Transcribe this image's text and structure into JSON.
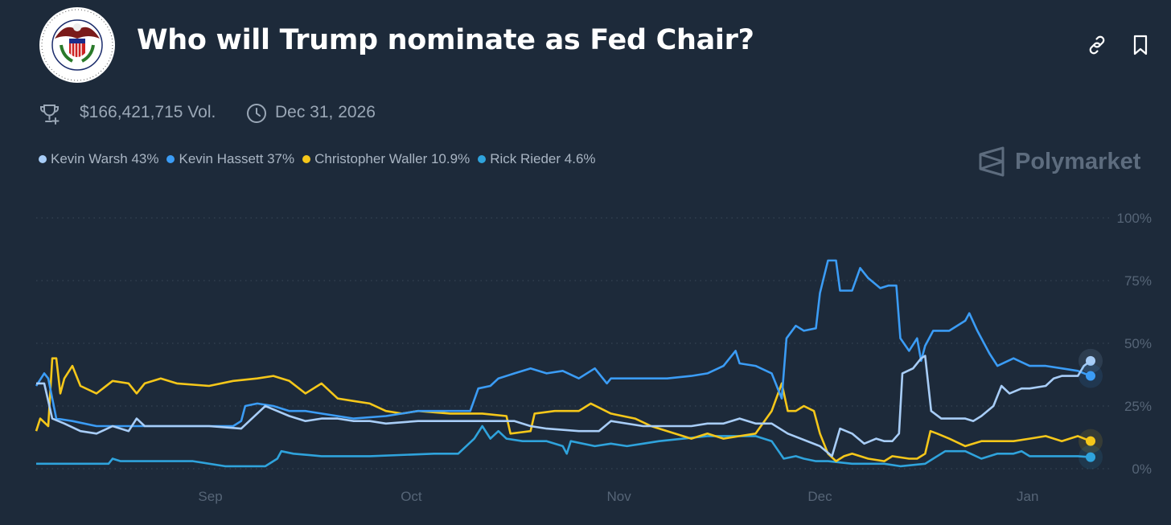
{
  "header": {
    "logo_text": "BOARD OF GOVERNORS OF THE FEDERAL RESERVE SYSTEM",
    "title": "Who will Trump nominate as Fed Chair?",
    "volume": "$166,421,715 Vol.",
    "end_date": "Dec 31, 2026",
    "icons": [
      "trophy-icon",
      "clock-icon",
      "link-icon",
      "bookmark-icon"
    ]
  },
  "brand": "Polymarket",
  "legend": [
    {
      "label": "Kevin Warsh 43%",
      "color": "#a8cdf7"
    },
    {
      "label": "Kevin Hassett 37%",
      "color": "#3b9cf5"
    },
    {
      "label": "Christopher Waller 10.9%",
      "color": "#f5c71a"
    },
    {
      "label": "Rick Rieder 4.6%",
      "color": "#2fa3dc"
    }
  ],
  "chart_data": {
    "type": "line",
    "title": "Who will Trump nominate as Fed Chair?",
    "x_unit": "days since Aug 6",
    "xlim": [
      0,
      157.4
    ],
    "ylim": [
      0,
      100
    ],
    "x_ticks": [
      {
        "label": "Sep",
        "x": 26
      },
      {
        "label": "Oct",
        "x": 56
      },
      {
        "label": "Nov",
        "x": 87
      },
      {
        "label": "Dec",
        "x": 117
      },
      {
        "label": "Jan",
        "x": 148
      }
    ],
    "y_ticks": [
      {
        "label": "100%",
        "y": 100
      },
      {
        "label": "75%",
        "y": 75
      },
      {
        "label": "50%",
        "y": 50
      },
      {
        "label": "25%",
        "y": 25
      },
      {
        "label": "0%",
        "y": 0
      }
    ],
    "grid": true,
    "series": [
      {
        "name": "Kevin Warsh",
        "color": "#a8cdf7",
        "points": [
          [
            0,
            34
          ],
          [
            1.2,
            34
          ],
          [
            2.4,
            20
          ],
          [
            4.2,
            18
          ],
          [
            6.6,
            15
          ],
          [
            9,
            14
          ],
          [
            11.4,
            17
          ],
          [
            13.8,
            15
          ],
          [
            15,
            20
          ],
          [
            16.2,
            17
          ],
          [
            21,
            17
          ],
          [
            25.8,
            17
          ],
          [
            30.6,
            16
          ],
          [
            34.2,
            25
          ],
          [
            37.8,
            21
          ],
          [
            40.2,
            19
          ],
          [
            42.6,
            20
          ],
          [
            45,
            20
          ],
          [
            47.4,
            19
          ],
          [
            49.8,
            19
          ],
          [
            52.2,
            18
          ],
          [
            57,
            19
          ],
          [
            61.8,
            19
          ],
          [
            64.2,
            19
          ],
          [
            66.6,
            19
          ],
          [
            71.4,
            19
          ],
          [
            73.8,
            17
          ],
          [
            76.2,
            16
          ],
          [
            81,
            15
          ],
          [
            84,
            15
          ],
          [
            85.8,
            19
          ],
          [
            90.6,
            17
          ],
          [
            93,
            17
          ],
          [
            95.4,
            17
          ],
          [
            97.8,
            17
          ],
          [
            100.2,
            18
          ],
          [
            102.6,
            18
          ],
          [
            105,
            20
          ],
          [
            107.4,
            18
          ],
          [
            109.8,
            18
          ],
          [
            112.2,
            14
          ],
          [
            117,
            9
          ],
          [
            118.8,
            5
          ],
          [
            120,
            16
          ],
          [
            121.8,
            14
          ],
          [
            123.6,
            10
          ],
          [
            125.4,
            12
          ],
          [
            126.6,
            11
          ],
          [
            127.8,
            11
          ],
          [
            128.8,
            14
          ],
          [
            129.3,
            38
          ],
          [
            130.9,
            40
          ],
          [
            132.1,
            44
          ],
          [
            132.7,
            45
          ],
          [
            133.6,
            23
          ],
          [
            135.1,
            20
          ],
          [
            136.3,
            20
          ],
          [
            138.7,
            20
          ],
          [
            139.9,
            19
          ],
          [
            141.1,
            21
          ],
          [
            142.9,
            25
          ],
          [
            144.1,
            33
          ],
          [
            145.3,
            30
          ],
          [
            147.1,
            32
          ],
          [
            148.3,
            32
          ],
          [
            150.7,
            33
          ],
          [
            151.9,
            36
          ],
          [
            153.1,
            37
          ],
          [
            155.5,
            37
          ],
          [
            156.4,
            41
          ],
          [
            157.4,
            43
          ]
        ]
      },
      {
        "name": "Kevin Hassett",
        "color": "#3b9cf5",
        "points": [
          [
            0,
            33
          ],
          [
            1.2,
            38
          ],
          [
            1.8,
            36
          ],
          [
            3,
            20
          ],
          [
            5.4,
            19
          ],
          [
            9,
            17
          ],
          [
            16.2,
            17
          ],
          [
            24.6,
            17
          ],
          [
            29.4,
            17
          ],
          [
            30.6,
            19
          ],
          [
            31.2,
            25
          ],
          [
            33,
            26
          ],
          [
            35.4,
            25
          ],
          [
            37.8,
            23
          ],
          [
            40.2,
            23
          ],
          [
            42.6,
            22
          ],
          [
            47.4,
            20
          ],
          [
            52.2,
            21
          ],
          [
            54.6,
            22
          ],
          [
            57,
            23
          ],
          [
            61.8,
            23
          ],
          [
            64.8,
            23
          ],
          [
            66,
            32
          ],
          [
            67.8,
            33
          ],
          [
            69,
            36
          ],
          [
            71.4,
            38
          ],
          [
            73.8,
            40
          ],
          [
            76.2,
            38
          ],
          [
            78.6,
            39
          ],
          [
            81,
            36
          ],
          [
            83.4,
            40
          ],
          [
            85.2,
            34
          ],
          [
            85.8,
            36
          ],
          [
            90.6,
            36
          ],
          [
            94.2,
            36
          ],
          [
            97.8,
            37
          ],
          [
            100.2,
            38
          ],
          [
            102.6,
            41
          ],
          [
            104.4,
            47
          ],
          [
            105,
            42
          ],
          [
            107.4,
            41
          ],
          [
            109.8,
            38
          ],
          [
            111.3,
            28
          ],
          [
            112,
            52
          ],
          [
            113.4,
            57
          ],
          [
            114.6,
            55
          ],
          [
            116.4,
            56
          ],
          [
            117,
            70
          ],
          [
            118.2,
            83
          ],
          [
            119.4,
            83
          ],
          [
            120,
            71
          ],
          [
            121.8,
            71
          ],
          [
            123,
            80
          ],
          [
            124.2,
            76
          ],
          [
            126,
            72
          ],
          [
            127.2,
            73
          ],
          [
            128.4,
            73
          ],
          [
            129,
            52
          ],
          [
            130.3,
            47
          ],
          [
            131.5,
            52
          ],
          [
            132.1,
            43
          ],
          [
            132.7,
            49
          ],
          [
            133.9,
            55
          ],
          [
            135.1,
            55
          ],
          [
            136.3,
            55
          ],
          [
            138.7,
            59
          ],
          [
            139.3,
            62
          ],
          [
            140.5,
            55
          ],
          [
            142.3,
            46
          ],
          [
            143.5,
            41
          ],
          [
            145.9,
            44
          ],
          [
            148.3,
            41
          ],
          [
            150.7,
            41
          ],
          [
            153.1,
            40
          ],
          [
            155.5,
            39
          ],
          [
            157.4,
            37
          ]
        ]
      },
      {
        "name": "Christopher Waller",
        "color": "#f5c71a",
        "points": [
          [
            0,
            15
          ],
          [
            0.6,
            20
          ],
          [
            1.8,
            17
          ],
          [
            2.4,
            44
          ],
          [
            3,
            44
          ],
          [
            3.6,
            30
          ],
          [
            4.2,
            36
          ],
          [
            5.4,
            41
          ],
          [
            6.6,
            33
          ],
          [
            9,
            30
          ],
          [
            11.4,
            35
          ],
          [
            13.8,
            34
          ],
          [
            15,
            30
          ],
          [
            16.2,
            34
          ],
          [
            18.6,
            36
          ],
          [
            21,
            34
          ],
          [
            25.8,
            33
          ],
          [
            29.4,
            35
          ],
          [
            33,
            36
          ],
          [
            35.4,
            37
          ],
          [
            37.8,
            35
          ],
          [
            40.2,
            30
          ],
          [
            42.6,
            34
          ],
          [
            45,
            28
          ],
          [
            47.4,
            27
          ],
          [
            49.8,
            26
          ],
          [
            52.2,
            23
          ],
          [
            54.6,
            22
          ],
          [
            57,
            23
          ],
          [
            61.8,
            22
          ],
          [
            66.6,
            22
          ],
          [
            70.2,
            21
          ],
          [
            70.8,
            14
          ],
          [
            73.8,
            15
          ],
          [
            74.4,
            22
          ],
          [
            77.4,
            23
          ],
          [
            81,
            23
          ],
          [
            82.8,
            26
          ],
          [
            85.8,
            22
          ],
          [
            89.4,
            20
          ],
          [
            91.8,
            17
          ],
          [
            94.2,
            15
          ],
          [
            97.8,
            12
          ],
          [
            100.2,
            14
          ],
          [
            102.6,
            12
          ],
          [
            105,
            13
          ],
          [
            107.4,
            14
          ],
          [
            109.8,
            23
          ],
          [
            111.3,
            34
          ],
          [
            112.2,
            23
          ],
          [
            113.4,
            23
          ],
          [
            114.6,
            25
          ],
          [
            116.1,
            23
          ],
          [
            117,
            14
          ],
          [
            118.2,
            6
          ],
          [
            119.4,
            3
          ],
          [
            120.6,
            5
          ],
          [
            121.8,
            6
          ],
          [
            124.2,
            4
          ],
          [
            126.6,
            3
          ],
          [
            127.8,
            5
          ],
          [
            130.3,
            4
          ],
          [
            131.5,
            4
          ],
          [
            132.7,
            6
          ],
          [
            133.5,
            15
          ],
          [
            134.5,
            14
          ],
          [
            136.3,
            12
          ],
          [
            138.7,
            9
          ],
          [
            141.1,
            11
          ],
          [
            143.5,
            11
          ],
          [
            145.9,
            11
          ],
          [
            148.3,
            12
          ],
          [
            150.7,
            13
          ],
          [
            153.1,
            11
          ],
          [
            155.5,
            13
          ],
          [
            157.4,
            11
          ]
        ]
      },
      {
        "name": "Rick Rieder",
        "color": "#2fa3dc",
        "points": [
          [
            0,
            2
          ],
          [
            5.4,
            2
          ],
          [
            10.8,
            2
          ],
          [
            11.4,
            4
          ],
          [
            12.6,
            3
          ],
          [
            23.4,
            3
          ],
          [
            28.2,
            1
          ],
          [
            34.2,
            1
          ],
          [
            36,
            4
          ],
          [
            36.6,
            7
          ],
          [
            38.4,
            6
          ],
          [
            42.6,
            5
          ],
          [
            49.8,
            5
          ],
          [
            59.4,
            6
          ],
          [
            63,
            6
          ],
          [
            65.4,
            12
          ],
          [
            66.6,
            17
          ],
          [
            67.8,
            12
          ],
          [
            69,
            15
          ],
          [
            70.2,
            12
          ],
          [
            72.6,
            11
          ],
          [
            76.2,
            11
          ],
          [
            78.6,
            9
          ],
          [
            79.2,
            6
          ],
          [
            79.8,
            11
          ],
          [
            83.4,
            9
          ],
          [
            85.8,
            10
          ],
          [
            88.2,
            9
          ],
          [
            90.6,
            10
          ],
          [
            93,
            11
          ],
          [
            96.6,
            12
          ],
          [
            100.2,
            13
          ],
          [
            103.8,
            13
          ],
          [
            107.4,
            13
          ],
          [
            109.8,
            11
          ],
          [
            111.6,
            4
          ],
          [
            113.4,
            5
          ],
          [
            114.6,
            4
          ],
          [
            116.4,
            3
          ],
          [
            118.2,
            3
          ],
          [
            121.8,
            2
          ],
          [
            126.6,
            2
          ],
          [
            129,
            1
          ],
          [
            132.7,
            2
          ],
          [
            133.9,
            4
          ],
          [
            135.7,
            7
          ],
          [
            138.7,
            7
          ],
          [
            141.1,
            4
          ],
          [
            143.5,
            6
          ],
          [
            145.9,
            6
          ],
          [
            147.1,
            7
          ],
          [
            148.3,
            5
          ],
          [
            150.7,
            5
          ],
          [
            153.1,
            5
          ],
          [
            155.5,
            5
          ],
          [
            157.4,
            4.6
          ]
        ]
      }
    ]
  }
}
